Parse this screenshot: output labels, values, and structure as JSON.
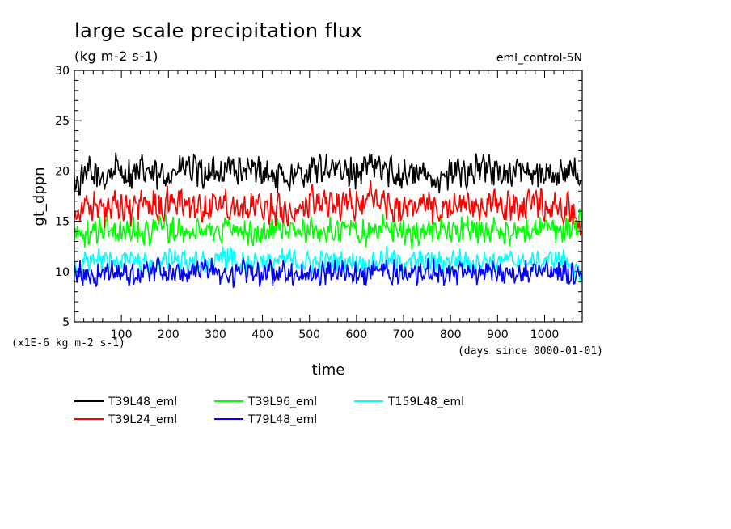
{
  "chart_data": {
    "type": "line",
    "title": "large scale precipitation flux",
    "subtitle": "(kg m-2 s-1)",
    "annotation_right": "eml_control-5N",
    "xlabel": "time",
    "ylabel": "gt_dppn",
    "x_unit_note": "(days since 0000-01-01)",
    "y_unit_note": "(x1E-6 kg m-2 s-1)",
    "xlim": [
      0,
      1080
    ],
    "ylim": [
      5,
      30
    ],
    "x_ticks": [
      100,
      200,
      300,
      400,
      500,
      600,
      700,
      800,
      900,
      1000
    ],
    "y_ticks": [
      5,
      10,
      15,
      20,
      25,
      30
    ],
    "x_tick_labels": [
      "100",
      "200",
      "300",
      "400",
      "500",
      "600",
      "700",
      "800",
      "900",
      "1000"
    ],
    "y_tick_labels": [
      "5",
      "10",
      "15",
      "20",
      "25",
      "30"
    ],
    "grid": false,
    "legend_position": "bottom",
    "series": [
      {
        "name": "T39L48_eml",
        "color": "#000000",
        "x": [
          0,
          30,
          60,
          90,
          120,
          150,
          180,
          210,
          240,
          270,
          300,
          330,
          360,
          390,
          420,
          450,
          480,
          510,
          540,
          570,
          600,
          630,
          660,
          690,
          720,
          750,
          780,
          810,
          840,
          870,
          900,
          930,
          960,
          990,
          1020,
          1050,
          1080
        ],
        "values": [
          18.5,
          19.8,
          19.2,
          20.3,
          19.5,
          20.1,
          19.3,
          19.9,
          20.4,
          19.6,
          19.8,
          20.5,
          19.7,
          20.2,
          19.4,
          19.3,
          19.6,
          20.1,
          20.4,
          19.8,
          19.9,
          20.6,
          20.1,
          19.7,
          19.8,
          19.6,
          19.2,
          19.9,
          20.0,
          20.3,
          19.8,
          19.7,
          20.2,
          19.9,
          19.5,
          20.2,
          19.0
        ]
      },
      {
        "name": "T39L24_eml",
        "color": "#ff0000",
        "x": [
          0,
          30,
          60,
          90,
          120,
          150,
          180,
          210,
          240,
          270,
          300,
          330,
          360,
          390,
          420,
          450,
          480,
          510,
          540,
          570,
          600,
          630,
          660,
          690,
          720,
          750,
          780,
          810,
          840,
          870,
          900,
          930,
          960,
          990,
          1020,
          1050,
          1080
        ],
        "values": [
          15.8,
          16.8,
          15.9,
          16.4,
          16.2,
          16.9,
          16.3,
          17.1,
          16.7,
          16.2,
          17.0,
          16.6,
          16.5,
          16.4,
          16.3,
          16.2,
          16.0,
          17.3,
          16.9,
          16.7,
          16.5,
          17.4,
          16.8,
          16.3,
          16.6,
          16.7,
          16.1,
          16.8,
          16.5,
          16.6,
          16.6,
          16.3,
          16.7,
          17.0,
          16.2,
          16.5,
          14.0
        ]
      },
      {
        "name": "T39L96_eml",
        "color": "#00ff00",
        "x": [
          0,
          30,
          60,
          90,
          120,
          150,
          180,
          210,
          240,
          270,
          300,
          330,
          360,
          390,
          420,
          450,
          480,
          510,
          540,
          570,
          600,
          630,
          660,
          690,
          720,
          750,
          780,
          810,
          840,
          870,
          900,
          930,
          960,
          990,
          1020,
          1050,
          1080
        ],
        "values": [
          14.0,
          13.6,
          14.3,
          13.9,
          14.2,
          13.8,
          14.6,
          14.1,
          13.7,
          14.3,
          14.0,
          14.5,
          13.9,
          13.6,
          14.1,
          14.4,
          13.8,
          14.2,
          13.9,
          14.3,
          14.0,
          13.8,
          14.5,
          14.1,
          13.6,
          14.2,
          14.3,
          13.9,
          14.4,
          14.0,
          14.1,
          13.8,
          14.2,
          14.5,
          13.9,
          14.3,
          15.0
        ]
      },
      {
        "name": "T79L48_eml",
        "color": "#0000ff",
        "x": [
          0,
          30,
          60,
          90,
          120,
          150,
          180,
          210,
          240,
          270,
          300,
          330,
          360,
          390,
          420,
          450,
          480,
          510,
          540,
          570,
          600,
          630,
          660,
          690,
          720,
          750,
          780,
          810,
          840,
          870,
          900,
          930,
          960,
          990,
          1020,
          1050,
          1080
        ],
        "values": [
          10.0,
          9.5,
          9.8,
          10.2,
          9.6,
          10.0,
          10.3,
          9.7,
          9.9,
          10.4,
          10.1,
          9.6,
          10.0,
          9.8,
          9.9,
          10.2,
          9.7,
          9.5,
          10.1,
          9.9,
          9.6,
          10.0,
          10.2,
          9.8,
          9.7,
          10.0,
          9.9,
          10.1,
          9.6,
          9.8,
          10.0,
          9.7,
          9.8,
          10.4,
          9.9,
          9.8,
          9.2
        ]
      },
      {
        "name": "T159L48_eml",
        "color": "#00ffff",
        "x": [
          0,
          30,
          60,
          90,
          120,
          150,
          180,
          210,
          240,
          270,
          300,
          330,
          360,
          390,
          420,
          450,
          480,
          510,
          540,
          570,
          600,
          630,
          660,
          690,
          720,
          750,
          780,
          810,
          840,
          870,
          900,
          930,
          960,
          990,
          1020,
          1050,
          1080
        ],
        "values": [
          10.5,
          10.9,
          11.2,
          10.8,
          11.3,
          10.9,
          10.7,
          11.4,
          11.0,
          10.8,
          11.2,
          11.5,
          10.9,
          11.1,
          10.7,
          11.3,
          11.0,
          10.8,
          11.2,
          10.9,
          11.1,
          10.6,
          11.4,
          11.0,
          10.9,
          11.2,
          10.8,
          11.3,
          11.0,
          11.1,
          10.9,
          11.2,
          11.0,
          10.8,
          11.3,
          11.1,
          9.0
        ]
      }
    ]
  }
}
